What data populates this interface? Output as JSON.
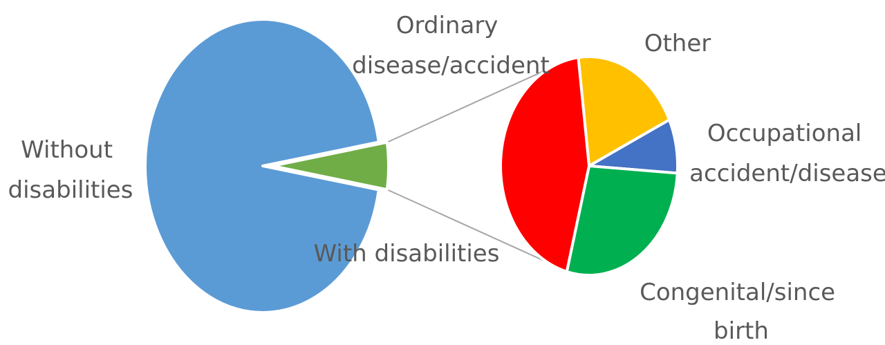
{
  "chart_data": {
    "type": "pie",
    "subtype": "pie-of-pie",
    "primary": {
      "slices": [
        {
          "label_lines": [
            "Without",
            "disabilities"
          ],
          "value": 94.8,
          "color": "#5b9bd5"
        },
        {
          "label_lines": [
            "With disabilities"
          ],
          "value": 5.2,
          "color": "#70ad47"
        }
      ]
    },
    "secondary": {
      "breakdown_of": "With disabilities",
      "slices": [
        {
          "label_lines": [
            "Other"
          ],
          "value": 20,
          "color": "#ffc000"
        },
        {
          "label_lines": [
            "Occupational",
            "accident/disease"
          ],
          "value": 8,
          "color": "#4472c4"
        },
        {
          "label_lines": [
            "Congenital/since",
            "birth"
          ],
          "value": 28,
          "color": "#00b050"
        },
        {
          "label_lines": [
            "Ordinary",
            "disease/accident"
          ],
          "value": 44,
          "color": "#ff0000"
        }
      ]
    }
  }
}
